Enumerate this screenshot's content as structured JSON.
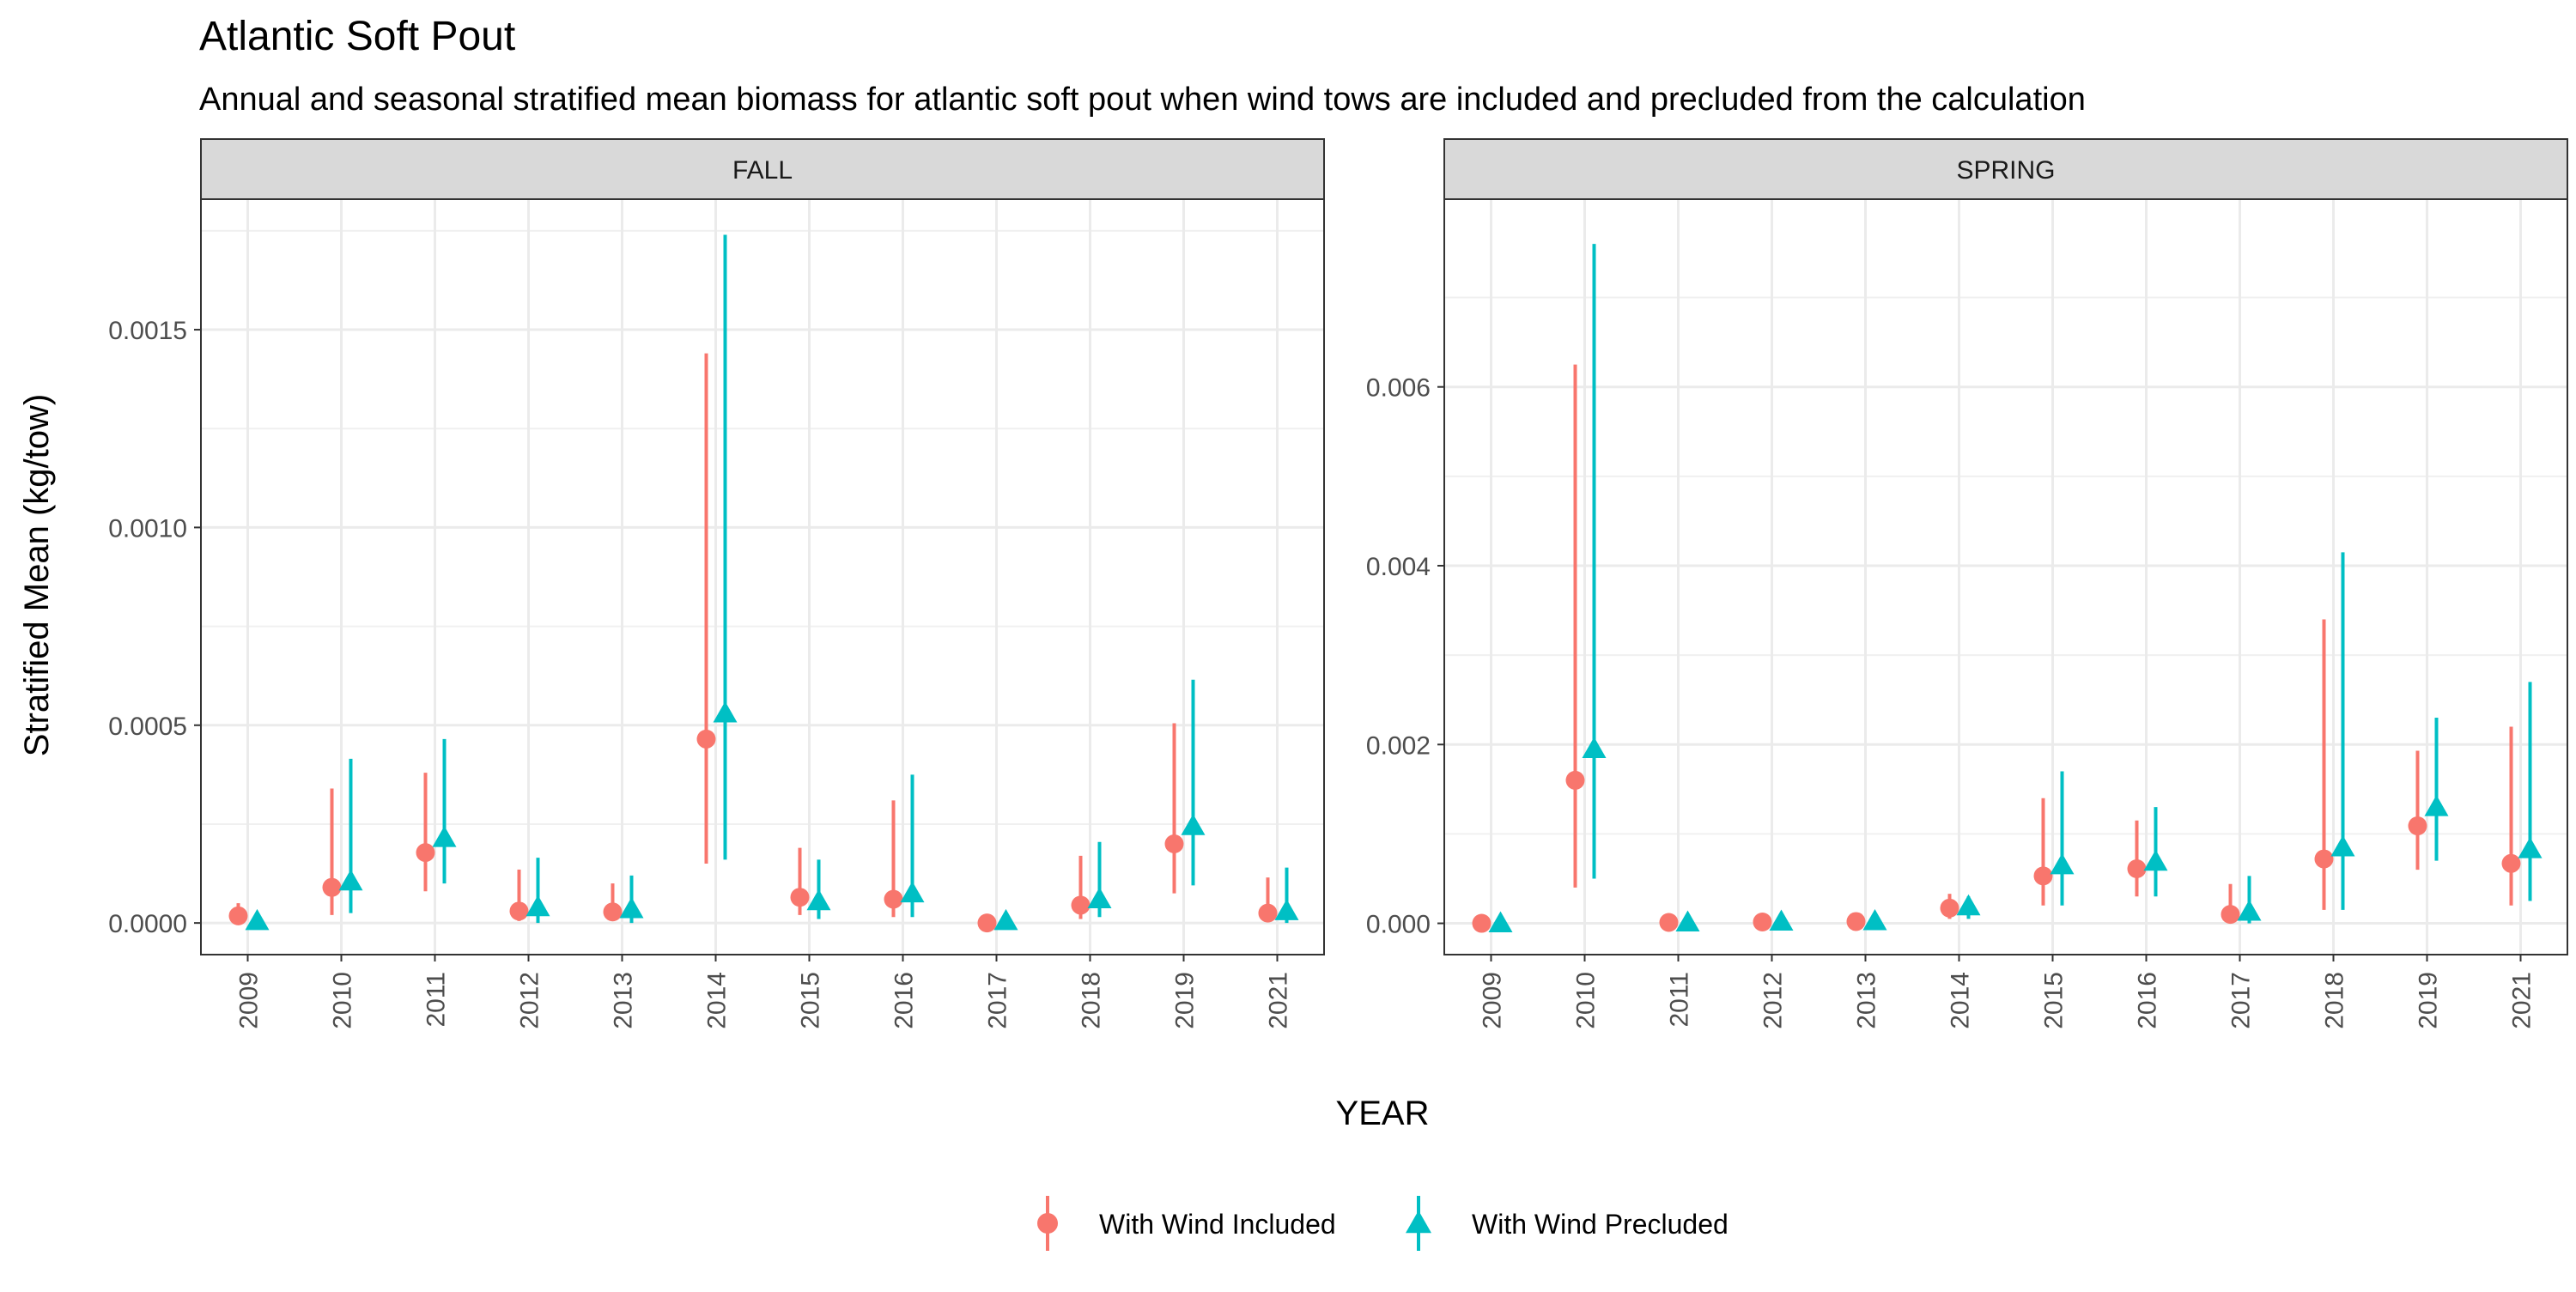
{
  "chart_data": {
    "type": "scatter",
    "title": "Atlantic Soft Pout",
    "subtitle": "Annual and seasonal stratified mean biomass for atlantic soft pout when wind tows are included and precluded from the calculation",
    "xlabel": "YEAR",
    "ylabel": "Stratified Mean (kg/tow)",
    "legend_position": "bottom",
    "grid": true,
    "series_styles": [
      {
        "name": "With Wind Included",
        "color": "#F8766D",
        "marker": "circle"
      },
      {
        "name": "With Wind Precluded",
        "color": "#00BFC4",
        "marker": "triangle"
      }
    ],
    "facets": [
      {
        "label": "FALL",
        "categories": [
          "2009",
          "2010",
          "2011",
          "2012",
          "2013",
          "2014",
          "2015",
          "2016",
          "2017",
          "2018",
          "2019",
          "2021"
        ],
        "ylim": [
          -8e-05,
          0.00183
        ],
        "yticks": [
          0.0,
          0.0005,
          0.001,
          0.0015
        ],
        "ytick_labels": [
          "0.0000",
          "0.0005",
          "0.0010",
          "0.0015"
        ],
        "series": [
          {
            "name": "With Wind Included",
            "values": [
              1.8e-05,
              9e-05,
              0.000178,
              3e-05,
              2.8e-05,
              0.000465,
              6.5e-05,
              6e-05,
              0.0,
              4.5e-05,
              0.0002,
              2.5e-05
            ],
            "lower": [
              5e-06,
              2e-05,
              8e-05,
              5e-06,
              5e-06,
              0.00015,
              2e-05,
              1.5e-05,
              0.0,
              1e-05,
              7.5e-05,
              5e-06
            ],
            "upper": [
              5e-05,
              0.00034,
              0.00038,
              0.000135,
              0.0001,
              0.00144,
              0.00019,
              0.00031,
              5e-06,
              0.00017,
              0.000505,
              0.000115
            ]
          },
          {
            "name": "With Wind Precluded",
            "values": [
              5e-06,
              0.000105,
              0.000215,
              4e-05,
              3.5e-05,
              0.00053,
              5.5e-05,
              7.5e-05,
              5e-06,
              6e-05,
              0.000245,
              3e-05
            ],
            "lower": [
              0.0,
              2.5e-05,
              0.0001,
              0.0,
              0.0,
              0.00016,
              1e-05,
              1.5e-05,
              0.0,
              1.5e-05,
              9.5e-05,
              0.0
            ],
            "upper": [
              1e-05,
              0.000415,
              0.000465,
              0.000165,
              0.00012,
              0.00174,
              0.00016,
              0.000375,
              1e-05,
              0.000205,
              0.000615,
              0.00014
            ]
          }
        ]
      },
      {
        "label": "SPRING",
        "categories": [
          "2009",
          "2010",
          "2011",
          "2012",
          "2013",
          "2014",
          "2015",
          "2016",
          "2017",
          "2018",
          "2019",
          "2021"
        ],
        "ylim": [
          -0.00035,
          0.0081
        ],
        "yticks": [
          0.0,
          0.002,
          0.004,
          0.006
        ],
        "ytick_labels": [
          "0.000",
          "0.002",
          "0.004",
          "0.006"
        ],
        "series": [
          {
            "name": "With Wind Included",
            "values": [
              0.0,
              0.0016,
              1e-05,
              1.5e-05,
              2e-05,
              0.00017,
              0.00053,
              0.00061,
              0.0001,
              0.00072,
              0.00109,
              0.00067
            ],
            "lower": [
              0.0,
              0.0004,
              0.0,
              0.0,
              0.0,
              5e-05,
              0.0002,
              0.0003,
              0.0,
              0.00015,
              0.0006,
              0.0002
            ],
            "upper": [
              1e-05,
              0.00625,
              4e-05,
              5e-05,
              6e-05,
              0.00033,
              0.0014,
              0.00115,
              0.00044,
              0.0034,
              0.00193,
              0.0022
            ]
          },
          {
            "name": "With Wind Precluded",
            "values": [
              0.0,
              0.00195,
              1e-05,
              2e-05,
              2.5e-05,
              0.00019,
              0.00065,
              0.00069,
              0.00013,
              0.00085,
              0.0013,
              0.00083
            ],
            "lower": [
              0.0,
              0.0005,
              0.0,
              0.0,
              0.0,
              5e-05,
              0.0002,
              0.0003,
              0.0,
              0.00015,
              0.0007,
              0.00025
            ],
            "upper": [
              1e-05,
              0.0076,
              4e-05,
              5e-05,
              6e-05,
              0.0003,
              0.0017,
              0.0013,
              0.00053,
              0.00415,
              0.0023,
              0.0027
            ]
          }
        ]
      }
    ]
  }
}
